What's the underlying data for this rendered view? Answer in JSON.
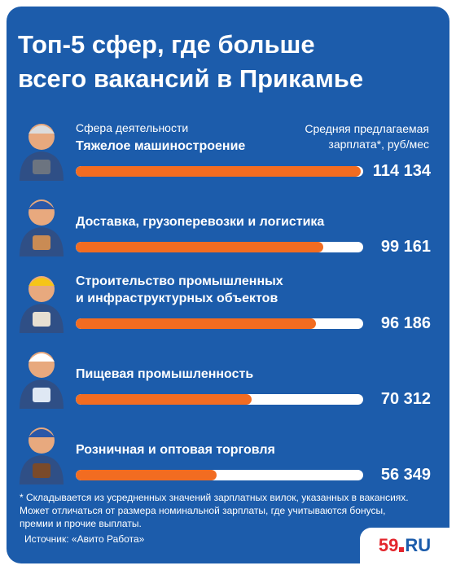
{
  "chart_data": {
    "type": "bar",
    "orientation": "horizontal",
    "title": "Топ-5 сфер, где больше\nвсего вакансий в Прикамье",
    "category_header": "Сфера деятельности",
    "value_header": "Средняя предлагаемая\nзарплата*, руб/мес",
    "categories": [
      "Тяжелое машиностроение",
      "Доставка, грузоперевозки и логистика",
      "Строительство промышленных\nи инфраструктурных объектов",
      "Пищевая промышленность",
      "Розничная и оптовая торговля"
    ],
    "values": [
      114134,
      99161,
      96186,
      70312,
      56349
    ],
    "value_labels": [
      "114 134",
      "99 161",
      "96 186",
      "70 312",
      "56 349"
    ],
    "color": "#f26c21",
    "xlim": [
      0,
      115000
    ],
    "footnote": "* Складывается из усредненных значений зарплатных вилок, указанных в вакансиях.\nМожет отличаться от размера номинальной зарплаты, где учитываются бонусы,\nпремии и прочие выплаты.",
    "source": "Источник: «Авито Работа»",
    "logo": [
      "59",
      "RU"
    ]
  }
}
